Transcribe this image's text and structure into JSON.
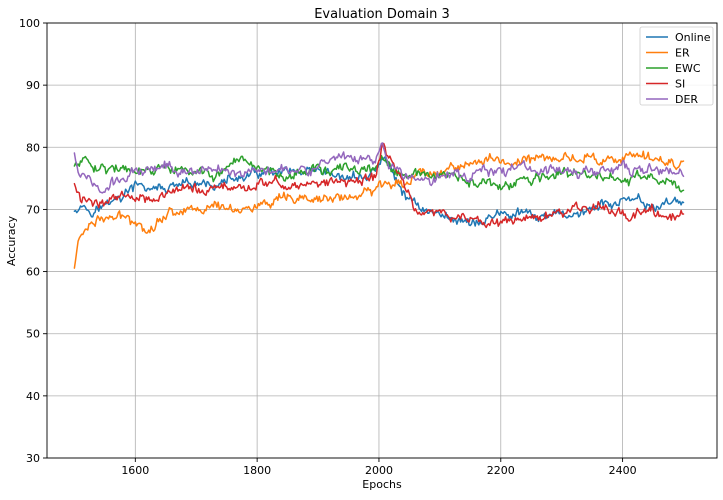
{
  "chart_data": {
    "type": "line",
    "title": "Evaluation Domain 3",
    "xlabel": "Epochs",
    "ylabel": "Accuracy",
    "xlim": [
      1455,
      2555
    ],
    "ylim": [
      30,
      100
    ],
    "xticks": [
      1600,
      1800,
      2000,
      2200,
      2400
    ],
    "yticks": [
      30,
      40,
      50,
      60,
      70,
      80,
      90,
      100
    ],
    "xtick_labels": [
      "1600",
      "1800",
      "2000",
      "2200",
      "2400"
    ],
    "ytick_labels": [
      "30",
      "40",
      "50",
      "60",
      "70",
      "80",
      "90",
      "100"
    ],
    "grid": true,
    "legend_position": "top-right",
    "x_start": 1500,
    "x_end": 2500,
    "series": [
      {
        "name": "Online",
        "color": "#1f77b4",
        "keyframes": [
          [
            1500,
            70.3
          ],
          [
            1510,
            71.0
          ],
          [
            1530,
            70.2
          ],
          [
            1560,
            71.0
          ],
          [
            1600,
            73.5
          ],
          [
            1650,
            73.2
          ],
          [
            1700,
            73.5
          ],
          [
            1750,
            74.5
          ],
          [
            1800,
            75.5
          ],
          [
            1850,
            75.5
          ],
          [
            1900,
            75.0
          ],
          [
            1950,
            75.0
          ],
          [
            1990,
            75.5
          ],
          [
            2005,
            78.5
          ],
          [
            2015,
            77.0
          ],
          [
            2030,
            74.0
          ],
          [
            2045,
            72.0
          ],
          [
            2060,
            71.0
          ],
          [
            2080,
            70.0
          ],
          [
            2100,
            69.0
          ],
          [
            2130,
            68.5
          ],
          [
            2170,
            68.0
          ],
          [
            2200,
            69.5
          ],
          [
            2230,
            69.0
          ],
          [
            2270,
            68.5
          ],
          [
            2300,
            69.0
          ],
          [
            2350,
            70.0
          ],
          [
            2400,
            71.5
          ],
          [
            2430,
            70.5
          ],
          [
            2460,
            70.5
          ],
          [
            2490,
            71.8
          ],
          [
            2500,
            70.5
          ]
        ]
      },
      {
        "name": "ER",
        "color": "#ff7f0e",
        "keyframes": [
          [
            1500,
            60.3
          ],
          [
            1505,
            64.5
          ],
          [
            1515,
            66.5
          ],
          [
            1530,
            68.5
          ],
          [
            1560,
            68.5
          ],
          [
            1600,
            68.5
          ],
          [
            1620,
            67.0
          ],
          [
            1650,
            69.5
          ],
          [
            1700,
            70.5
          ],
          [
            1750,
            70.3
          ],
          [
            1800,
            70.5
          ],
          [
            1850,
            71.0
          ],
          [
            1900,
            71.5
          ],
          [
            1950,
            72.0
          ],
          [
            1995,
            72.5
          ],
          [
            2000,
            74.0
          ],
          [
            2030,
            74.5
          ],
          [
            2060,
            75.5
          ],
          [
            2100,
            76.5
          ],
          [
            2150,
            77.5
          ],
          [
            2200,
            77.8
          ],
          [
            2250,
            78.0
          ],
          [
            2300,
            78.3
          ],
          [
            2350,
            78.5
          ],
          [
            2400,
            78.0
          ],
          [
            2450,
            78.0
          ],
          [
            2500,
            77.5
          ]
        ]
      },
      {
        "name": "EWC",
        "color": "#2ca02c",
        "keyframes": [
          [
            1500,
            76.8
          ],
          [
            1510,
            78.0
          ],
          [
            1530,
            77.5
          ],
          [
            1560,
            77.0
          ],
          [
            1600,
            75.5
          ],
          [
            1650,
            76.5
          ],
          [
            1700,
            75.5
          ],
          [
            1750,
            76.0
          ],
          [
            1800,
            76.5
          ],
          [
            1850,
            76.0
          ],
          [
            1900,
            76.5
          ],
          [
            1950,
            76.0
          ],
          [
            1995,
            76.5
          ],
          [
            2005,
            78.5
          ],
          [
            2020,
            76.0
          ],
          [
            2040,
            75.0
          ],
          [
            2080,
            75.5
          ],
          [
            2120,
            75.0
          ],
          [
            2160,
            74.0
          ],
          [
            2200,
            73.5
          ],
          [
            2230,
            74.0
          ],
          [
            2260,
            75.0
          ],
          [
            2300,
            75.5
          ],
          [
            2350,
            75.5
          ],
          [
            2400,
            74.5
          ],
          [
            2430,
            75.5
          ],
          [
            2460,
            74.0
          ],
          [
            2490,
            73.5
          ],
          [
            2500,
            73.5
          ]
        ]
      },
      {
        "name": "SI",
        "color": "#d62728",
        "keyframes": [
          [
            1500,
            74.0
          ],
          [
            1510,
            71.5
          ],
          [
            1530,
            71.0
          ],
          [
            1560,
            72.0
          ],
          [
            1600,
            72.5
          ],
          [
            1650,
            72.5
          ],
          [
            1700,
            73.0
          ],
          [
            1750,
            73.5
          ],
          [
            1800,
            74.0
          ],
          [
            1850,
            74.0
          ],
          [
            1900,
            74.0
          ],
          [
            1950,
            74.5
          ],
          [
            1995,
            75.0
          ],
          [
            2007,
            80.8
          ],
          [
            2015,
            78.5
          ],
          [
            2030,
            76.0
          ],
          [
            2045,
            73.0
          ],
          [
            2060,
            70.5
          ],
          [
            2080,
            69.5
          ],
          [
            2100,
            69.0
          ],
          [
            2150,
            68.5
          ],
          [
            2200,
            68.0
          ],
          [
            2250,
            68.5
          ],
          [
            2300,
            69.5
          ],
          [
            2350,
            70.0
          ],
          [
            2400,
            70.0
          ],
          [
            2450,
            69.5
          ],
          [
            2490,
            69.0
          ],
          [
            2500,
            69.5
          ]
        ]
      },
      {
        "name": "DER",
        "color": "#9467bd",
        "keyframes": [
          [
            1500,
            79.0
          ],
          [
            1505,
            77.0
          ],
          [
            1520,
            75.0
          ],
          [
            1540,
            73.0
          ],
          [
            1560,
            74.0
          ],
          [
            1600,
            76.0
          ],
          [
            1650,
            77.5
          ],
          [
            1700,
            76.0
          ],
          [
            1750,
            76.5
          ],
          [
            1800,
            76.5
          ],
          [
            1850,
            77.0
          ],
          [
            1900,
            77.0
          ],
          [
            1950,
            77.5
          ],
          [
            1995,
            78.0
          ],
          [
            2005,
            80.5
          ],
          [
            2020,
            77.0
          ],
          [
            2040,
            75.0
          ],
          [
            2080,
            75.0
          ],
          [
            2120,
            75.5
          ],
          [
            2150,
            76.0
          ],
          [
            2200,
            76.5
          ],
          [
            2250,
            76.5
          ],
          [
            2300,
            76.0
          ],
          [
            2350,
            76.0
          ],
          [
            2400,
            76.5
          ],
          [
            2450,
            76.5
          ],
          [
            2480,
            75.5
          ],
          [
            2500,
            75.5
          ]
        ]
      }
    ]
  }
}
